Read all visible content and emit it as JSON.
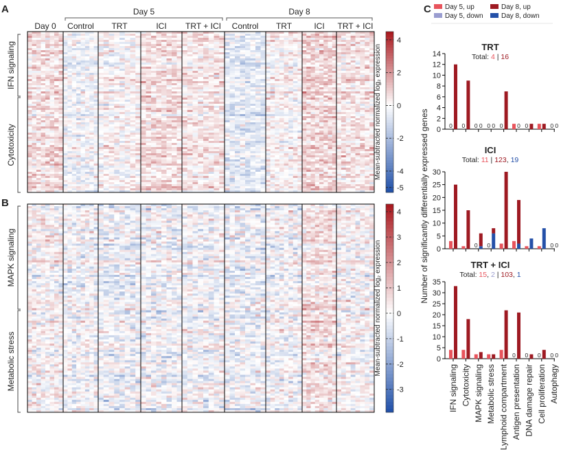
{
  "panels": {
    "a": "A",
    "b": "B",
    "c": "C"
  },
  "chart_data": [
    {
      "type": "heatmap",
      "id": "A",
      "day_groups": [
        {
          "label": "Day 5",
          "span": [
            1,
            4
          ]
        },
        {
          "label": "Day 8",
          "span": [
            5,
            8
          ]
        }
      ],
      "columns": [
        "Day 0",
        "Control",
        "TRT",
        "ICI",
        "TRT + ICI",
        "Control",
        "TRT",
        "ICI",
        "TRT + ICI"
      ],
      "column_bias": [
        0.8,
        -0.4,
        0.1,
        0.9,
        0.6,
        -0.9,
        0.2,
        1.1,
        0.7
      ],
      "row_groups": [
        "IFN signaling",
        "Cytotoxicity"
      ],
      "colorbar": {
        "label": "Mean-subtracted normalized log₂ expression",
        "range": [
          -5.3,
          4.5
        ],
        "ticks": [
          "4",
          "2",
          "0",
          "-2",
          "-4",
          "-5"
        ],
        "tick_values": [
          4,
          2,
          0,
          -2,
          -4,
          -5
        ],
        "low_color": "#1f4fa8",
        "mid_color": "#ffffff",
        "high_color": "#a8161c"
      }
    },
    {
      "type": "heatmap",
      "id": "B",
      "columns": [
        "Day 0",
        "Control",
        "TRT",
        "ICI",
        "TRT + ICI",
        "Control",
        "TRT",
        "ICI",
        "TRT + ICI"
      ],
      "column_bias": [
        0.2,
        -0.1,
        -0.3,
        -0.2,
        -0.1,
        -0.3,
        -0.1,
        0.8,
        0.1
      ],
      "row_groups": [
        "MAPK signaling",
        "Metabolic stress"
      ],
      "colorbar": {
        "label": "Mean-subtracted normalized log₂ expression",
        "range": [
          -3.9,
          4.3
        ],
        "ticks": [
          "4",
          "3",
          "2",
          "1",
          "0",
          "-1",
          "-2",
          "-3"
        ],
        "tick_values": [
          4,
          3,
          2,
          1,
          0,
          -1,
          -2,
          -3
        ],
        "low_color": "#1f4fa8",
        "mid_color": "#ffffff",
        "high_color": "#a8161c"
      }
    },
    {
      "type": "bar",
      "id": "C",
      "ylabel": "Number of significantly differentially expressed genes",
      "legend": [
        {
          "label": "Day 5, up",
          "color": "#e8545c"
        },
        {
          "label": "Day 5, down",
          "color": "#9a9dd0"
        },
        {
          "label": "Day 8, up",
          "color": "#9e1a22"
        },
        {
          "label": "Day 8, down",
          "color": "#2450a8"
        }
      ],
      "categories": [
        "IFN signaling",
        "Cytotoxicity",
        "MAPK signaling",
        "Metabolic stress",
        "Lymphoid compartment",
        "Antigen presentation",
        "DNA damage repair",
        "Cell proliferation",
        "Autophagy"
      ],
      "subplots": [
        {
          "title": "TRT",
          "total_prefix": "Total: ",
          "totals": [
            {
              "t": "4",
              "c": "#e8545c"
            },
            {
              "t": " | ",
              "c": "#222"
            },
            {
              "t": "16",
              "c": "#9e1a22"
            }
          ],
          "ylim": [
            0,
            14
          ],
          "yticks": [
            0,
            2,
            4,
            6,
            8,
            10,
            12,
            14
          ],
          "values": [
            [
              0,
              0,
              12,
              0
            ],
            [
              0,
              0,
              9,
              0
            ],
            [
              0,
              0,
              0,
              0
            ],
            [
              0,
              0,
              0,
              0
            ],
            [
              0,
              0,
              7,
              0
            ],
            [
              1,
              0,
              0,
              0
            ],
            [
              0,
              0,
              1,
              0
            ],
            [
              1,
              0,
              1,
              0
            ],
            [
              0,
              0,
              0,
              0
            ]
          ]
        },
        {
          "title": "ICI",
          "total_prefix": "Total: ",
          "totals": [
            {
              "t": "11",
              "c": "#e8545c"
            },
            {
              "t": " | ",
              "c": "#222"
            },
            {
              "t": "123",
              "c": "#9e1a22"
            },
            {
              "t": ", ",
              "c": "#222"
            },
            {
              "t": "19",
              "c": "#2450a8"
            }
          ],
          "ylim": [
            0,
            30
          ],
          "yticks": [
            0,
            5,
            10,
            15,
            20,
            25,
            30
          ],
          "values": [
            [
              3,
              0,
              25,
              0
            ],
            [
              1,
              0,
              15,
              0
            ],
            [
              0,
              0,
              5,
              1
            ],
            [
              0,
              0,
              2,
              6
            ],
            [
              2,
              0,
              30,
              0
            ],
            [
              3,
              0,
              17,
              2
            ],
            [
              1,
              0,
              0,
              4
            ],
            [
              1,
              0,
              0,
              8
            ],
            [
              0,
              0,
              0,
              0
            ]
          ]
        },
        {
          "title": "TRT + ICI",
          "total_prefix": "Total: ",
          "totals": [
            {
              "t": "15",
              "c": "#e8545c"
            },
            {
              "t": ", ",
              "c": "#222"
            },
            {
              "t": "2",
              "c": "#9a9dd0"
            },
            {
              "t": " | ",
              "c": "#222"
            },
            {
              "t": "103",
              "c": "#9e1a22"
            },
            {
              "t": ", ",
              "c": "#222"
            },
            {
              "t": "1",
              "c": "#2450a8"
            }
          ],
          "ylim": [
            0,
            35
          ],
          "yticks": [
            0,
            5,
            10,
            15,
            20,
            25,
            30,
            35
          ],
          "values": [
            [
              4,
              0,
              33,
              0
            ],
            [
              4,
              0,
              18,
              0
            ],
            [
              2,
              0,
              3,
              0
            ],
            [
              2,
              0,
              2,
              0
            ],
            [
              4,
              0,
              22,
              0
            ],
            [
              0,
              0,
              21,
              0
            ],
            [
              0,
              0,
              2,
              0
            ],
            [
              0,
              0,
              4,
              0
            ],
            [
              0,
              0,
              0,
              0
            ]
          ]
        }
      ]
    }
  ]
}
